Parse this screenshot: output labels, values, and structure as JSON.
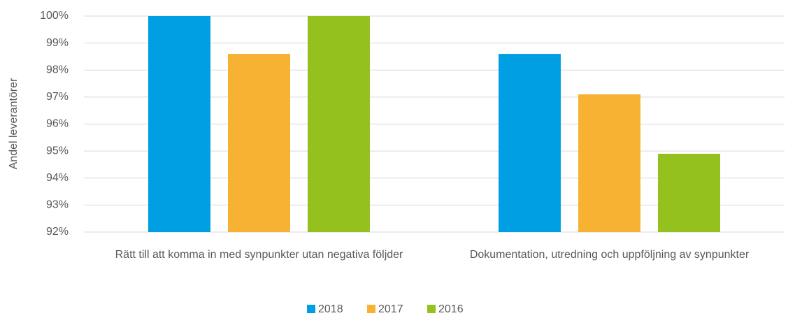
{
  "chart_data": {
    "type": "bar",
    "y_label": "Andel leverantörer",
    "categories": [
      "Rätt till att komma in med synpunkter utan negativa följder",
      "Dokumentation, utredning och uppföljning av synpunkter"
    ],
    "series": [
      {
        "name": "2018",
        "color": "#009fe3",
        "values": [
          100,
          98.6
        ]
      },
      {
        "name": "2017",
        "color": "#f7b133",
        "values": [
          98.6,
          97.1
        ]
      },
      {
        "name": "2016",
        "color": "#95c11f",
        "values": [
          100,
          94.9
        ]
      }
    ],
    "ylim": [
      92,
      100
    ],
    "yticks": [
      {
        "value": 92,
        "label": "92%"
      },
      {
        "value": 93,
        "label": "93%"
      },
      {
        "value": 94,
        "label": "94%"
      },
      {
        "value": 95,
        "label": "95%"
      },
      {
        "value": 96,
        "label": "96%"
      },
      {
        "value": 97,
        "label": "97%"
      },
      {
        "value": 98,
        "label": "98%"
      },
      {
        "value": 99,
        "label": "99%"
      },
      {
        "value": 100,
        "label": "100%"
      }
    ],
    "grid": true,
    "legend": "bottom"
  }
}
